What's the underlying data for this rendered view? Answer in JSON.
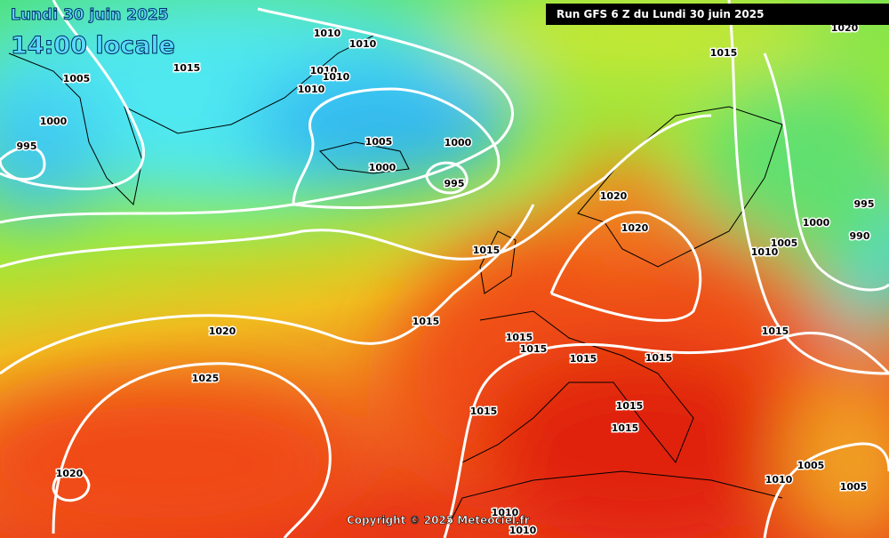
{
  "header": {
    "date": "Lundi 30 juin 2025",
    "time": "14:00 locale",
    "run": "Run GFS 6 Z du Lundi 30 juin 2025"
  },
  "footer": {
    "copyright": "Copyright © 2025 Meteociel.fr"
  },
  "isobar_labels": [
    1010,
    1010,
    1015,
    1005,
    1010,
    1010,
    1010,
    1000,
    995,
    1005,
    1000,
    1000,
    995,
    1015,
    1020,
    1020,
    1020,
    1015,
    995,
    1000,
    990,
    1005,
    1010,
    1015,
    1020,
    1015,
    1015,
    1015,
    1015,
    1015,
    1025,
    1015,
    1015,
    1015,
    1020,
    1005,
    1010,
    1005,
    1010,
    1010
  ]
}
